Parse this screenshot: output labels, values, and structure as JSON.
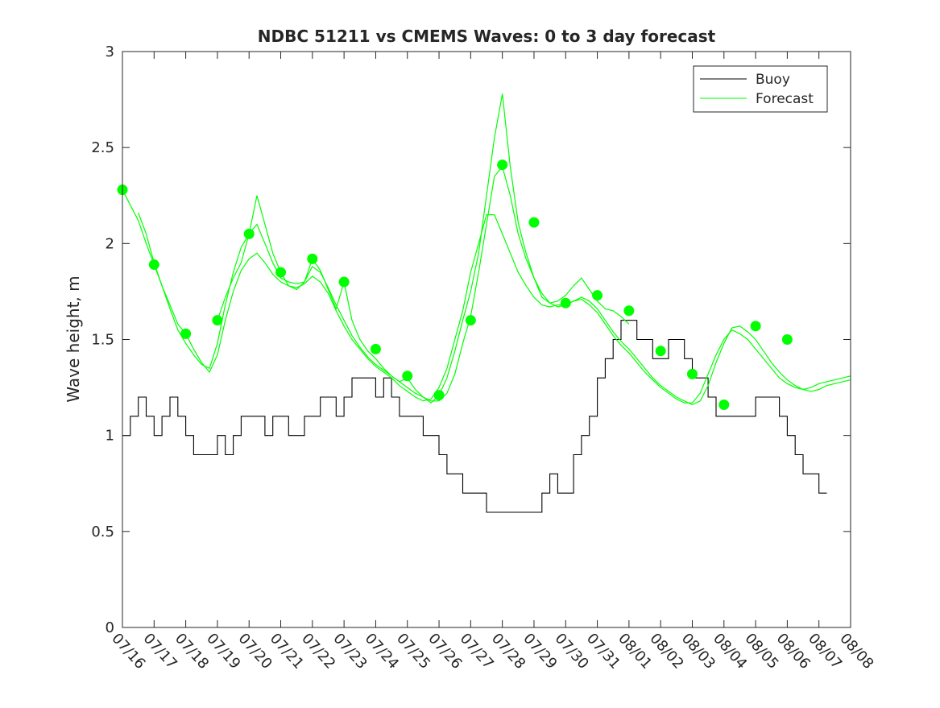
{
  "chart_data": {
    "type": "line",
    "title": "NDBC 51211 vs CMEMS Waves: 0 to 3 day forecast",
    "xlabel": "",
    "ylabel": "Wave height, m",
    "xlim": [
      "07/16",
      "08/08"
    ],
    "ylim": [
      0,
      3
    ],
    "x_ticks": [
      "07/16",
      "07/17",
      "07/18",
      "07/19",
      "07/20",
      "07/21",
      "07/22",
      "07/23",
      "07/24",
      "07/25",
      "07/26",
      "07/27",
      "07/28",
      "07/29",
      "07/30",
      "07/31",
      "08/01",
      "08/02",
      "08/03",
      "08/04",
      "08/05",
      "08/06",
      "08/07",
      "08/08"
    ],
    "y_ticks": [
      0,
      0.5,
      1,
      1.5,
      2,
      2.5,
      3
    ],
    "grid": false,
    "legend": {
      "placement": "top-right",
      "entries": [
        "Buoy",
        "Forecast"
      ]
    },
    "colors": {
      "buoy": "#000000",
      "forecast": "#00ff00"
    },
    "series": [
      {
        "name": "Buoy",
        "x": [
          "07/16",
          "07/16 06h",
          "07/16 12h",
          "07/16 18h",
          "07/17",
          "07/17 06h",
          "07/17 12h",
          "07/17 18h",
          "07/18",
          "07/18 06h",
          "07/18 12h",
          "07/18 18h",
          "07/19",
          "07/19 06h",
          "07/19 12h",
          "07/19 18h",
          "07/20",
          "07/20 06h",
          "07/20 12h",
          "07/20 18h",
          "07/21",
          "07/21 06h",
          "07/21 12h",
          "07/21 18h",
          "07/22",
          "07/22 06h",
          "07/22 12h",
          "07/22 18h",
          "07/23",
          "07/23 06h",
          "07/23 12h",
          "07/23 18h",
          "07/24",
          "07/24 06h",
          "07/24 12h",
          "07/24 18h",
          "07/25",
          "07/25 06h",
          "07/25 12h",
          "07/25 18h",
          "07/26",
          "07/26 06h",
          "07/26 12h",
          "07/26 18h",
          "07/27",
          "07/27 06h",
          "07/27 12h",
          "07/27 18h",
          "07/28",
          "07/28 06h",
          "07/28 12h",
          "07/28 18h",
          "07/29",
          "07/29 06h",
          "07/29 12h",
          "07/29 18h",
          "07/30",
          "07/30 06h",
          "07/30 12h",
          "07/30 18h",
          "07/31",
          "07/31 06h",
          "07/31 12h",
          "07/31 18h",
          "08/01",
          "08/01 06h",
          "08/01 12h",
          "08/01 18h",
          "08/02",
          "08/02 06h",
          "08/02 12h",
          "08/02 18h",
          "08/03",
          "08/03 06h",
          "08/03 12h",
          "08/03 18h",
          "08/04",
          "08/04 06h",
          "08/04 12h",
          "08/04 18h",
          "08/05",
          "08/05 06h",
          "08/05 12h",
          "08/05 18h",
          "08/06",
          "08/06 06h",
          "08/06 12h",
          "08/06 18h",
          "08/07",
          "08/07 06h"
        ],
        "y": [
          1.0,
          1.1,
          1.2,
          1.1,
          1.0,
          1.1,
          1.2,
          1.1,
          1.0,
          0.9,
          0.9,
          0.9,
          1.0,
          0.9,
          1.0,
          1.1,
          1.1,
          1.1,
          1.0,
          1.1,
          1.1,
          1.0,
          1.0,
          1.1,
          1.1,
          1.2,
          1.2,
          1.1,
          1.2,
          1.3,
          1.3,
          1.3,
          1.2,
          1.3,
          1.2,
          1.1,
          1.1,
          1.1,
          1.0,
          1.0,
          0.9,
          0.8,
          0.8,
          0.7,
          0.7,
          0.7,
          0.6,
          0.6,
          0.6,
          0.6,
          0.6,
          0.6,
          0.6,
          0.7,
          0.8,
          0.7,
          0.7,
          0.9,
          1.0,
          1.1,
          1.3,
          1.4,
          1.5,
          1.6,
          1.6,
          1.5,
          1.5,
          1.4,
          1.4,
          1.5,
          1.5,
          1.4,
          1.3,
          1.3,
          1.2,
          1.1,
          1.1,
          1.1,
          1.1,
          1.1,
          1.2,
          1.2,
          1.2,
          1.1,
          1.0,
          0.9,
          0.8,
          0.8,
          0.7,
          0.7
        ]
      },
      {
        "name": "Forecast",
        "x": [
          "07/16",
          "07/16 06h",
          "07/16 12h",
          "07/16 18h",
          "07/17",
          "07/17 06h",
          "07/17 12h",
          "07/17 18h",
          "07/18",
          "07/18 06h",
          "07/18 12h",
          "07/18 18h",
          "07/19",
          "07/19 06h",
          "07/19 12h",
          "07/19 18h",
          "07/20",
          "07/20 06h",
          "07/20 12h",
          "07/20 18h",
          "07/21",
          "07/21 06h",
          "07/21 12h",
          "07/21 18h",
          "07/22",
          "07/22 06h",
          "07/22 12h",
          "07/22 18h",
          "07/23",
          "07/23 06h",
          "07/23 12h",
          "07/23 18h",
          "07/24",
          "07/24 06h",
          "07/24 12h",
          "07/24 18h",
          "07/25",
          "07/25 06h",
          "07/25 12h",
          "07/25 18h",
          "07/26",
          "07/26 06h",
          "07/26 12h",
          "07/26 18h",
          "07/27",
          "07/27 06h",
          "07/27 12h",
          "07/27 18h",
          "07/28",
          "07/28 06h",
          "07/28 12h",
          "07/28 18h",
          "07/29",
          "07/29 06h",
          "07/29 12h",
          "07/29 18h",
          "07/30",
          "07/30 06h",
          "07/30 12h",
          "07/30 18h",
          "07/31",
          "07/31 06h",
          "07/31 12h",
          "07/31 18h",
          "08/01",
          "08/01 06h",
          "08/01 12h",
          "08/01 18h",
          "08/02",
          "08/02 06h",
          "08/02 12h",
          "08/02 18h",
          "08/03",
          "08/03 06h",
          "08/03 12h",
          "08/03 18h",
          "08/04",
          "08/04 06h",
          "08/04 12h",
          "08/04 18h",
          "08/05",
          "08/05 06h",
          "08/05 12h",
          "08/05 18h",
          "08/06",
          "08/06 06h",
          "08/06 12h",
          "08/06 18h",
          "08/07",
          "08/07 06h",
          "08/07 12h",
          "08/07 18h",
          "08/08"
        ],
        "y": [
          2.28,
          2.2,
          2.12,
          2.0,
          1.89,
          1.78,
          1.68,
          1.58,
          1.53,
          1.45,
          1.38,
          1.33,
          1.42,
          1.6,
          1.75,
          1.86,
          1.92,
          1.95,
          1.9,
          1.84,
          1.8,
          1.78,
          1.77,
          1.79,
          1.83,
          1.8,
          1.74,
          1.65,
          1.57,
          1.5,
          1.45,
          1.4,
          1.36,
          1.33,
          1.3,
          1.26,
          1.23,
          1.2,
          1.18,
          1.19,
          1.25,
          1.35,
          1.5,
          1.65,
          1.85,
          2.0,
          2.15,
          2.15,
          2.05,
          1.95,
          1.85,
          1.78,
          1.72,
          1.68,
          1.67,
          1.68,
          1.68,
          1.7,
          1.71,
          1.68,
          1.64,
          1.58,
          1.52,
          1.47,
          1.43,
          1.38,
          1.33,
          1.29,
          1.25,
          1.22,
          1.19,
          1.17,
          1.17,
          1.22,
          1.32,
          1.42,
          1.5,
          1.55,
          1.53,
          1.5,
          1.45,
          1.4,
          1.35,
          1.3,
          1.27,
          1.25,
          1.24,
          1.25,
          1.27,
          1.28,
          1.29,
          1.3,
          1.31
        ]
      },
      {
        "name": "Forecast",
        "x": [
          "07/16 12h",
          "07/16 18h",
          "07/17",
          "07/17 06h",
          "07/17 12h",
          "07/17 18h",
          "07/18",
          "07/18 06h",
          "07/18 12h",
          "07/18 18h",
          "07/19",
          "07/19 06h",
          "07/19 12h",
          "07/19 18h",
          "07/20",
          "07/20 06h",
          "07/20 12h",
          "07/20 18h",
          "07/21",
          "07/21 06h",
          "07/21 12h",
          "07/21 18h",
          "07/22",
          "07/22 06h",
          "07/22 12h",
          "07/22 18h",
          "07/23",
          "07/23 06h",
          "07/23 12h",
          "07/23 18h",
          "07/24",
          "07/24 06h",
          "07/24 12h",
          "07/24 18h",
          "07/25",
          "07/25 06h",
          "07/25 12h",
          "07/25 18h",
          "07/26",
          "07/26 06h",
          "07/26 12h",
          "07/26 18h",
          "07/27",
          "07/27 06h",
          "07/27 12h",
          "07/27 18h",
          "07/28",
          "07/28 06h",
          "07/28 12h",
          "07/28 18h",
          "07/29",
          "07/29 06h",
          "07/29 12h",
          "07/29 18h",
          "07/30",
          "07/30 06h",
          "07/30 12h",
          "07/30 18h",
          "07/31",
          "07/31 06h",
          "07/31 12h",
          "07/31 18h",
          "08/01",
          "08/01 06h",
          "08/01 12h",
          "08/01 18h",
          "08/02",
          "08/02 06h",
          "08/02 12h",
          "08/02 18h",
          "08/03",
          "08/03 06h",
          "08/03 12h",
          "08/03 18h",
          "08/04",
          "08/04 06h",
          "08/04 12h",
          "08/04 18h",
          "08/05",
          "08/05 06h",
          "08/05 12h",
          "08/05 18h",
          "08/06",
          "08/06 06h",
          "08/06 12h",
          "08/06 18h",
          "08/07",
          "08/07 06h",
          "08/07 12h",
          "08/07 18h",
          "08/08"
        ],
        "y": [
          2.16,
          2.05,
          1.9,
          1.78,
          1.66,
          1.55,
          1.48,
          1.42,
          1.37,
          1.35,
          1.48,
          1.68,
          1.85,
          1.98,
          2.05,
          2.1,
          2.0,
          1.9,
          1.82,
          1.8,
          1.79,
          1.8,
          1.88,
          1.85,
          1.77,
          1.68,
          1.6,
          1.52,
          1.46,
          1.41,
          1.37,
          1.34,
          1.31,
          1.28,
          1.25,
          1.22,
          1.2,
          1.18,
          1.18,
          1.22,
          1.32,
          1.48,
          1.62,
          1.85,
          2.1,
          2.35,
          2.4,
          2.25,
          2.05,
          1.92,
          1.82,
          1.74,
          1.69,
          1.67,
          1.68,
          1.7,
          1.72,
          1.7,
          1.66,
          1.6,
          1.54,
          1.49,
          1.45,
          1.4,
          1.35,
          1.3,
          1.26,
          1.23,
          1.2,
          1.18,
          1.16,
          1.18,
          1.26,
          1.38,
          1.48,
          1.56,
          1.57,
          1.54,
          1.5,
          1.44,
          1.38,
          1.33,
          1.29,
          1.26,
          1.24,
          1.23,
          1.24,
          1.26,
          1.27,
          1.28,
          1.29
        ]
      },
      {
        "name": "Forecast",
        "x": [
          "07/19",
          "07/19 06h",
          "07/19 12h",
          "07/19 18h",
          "07/20",
          "07/20 06h",
          "07/20 12h",
          "07/20 18h",
          "07/21",
          "07/21 06h",
          "07/21 12h",
          "07/21 18h",
          "07/22",
          "07/22 06h",
          "07/22 12h",
          "07/22 18h",
          "07/23",
          "07/23 06h",
          "07/23 12h",
          "07/23 18h",
          "07/24",
          "07/24 06h",
          "07/24 12h",
          "07/24 18h",
          "07/25",
          "07/25 06h",
          "07/25 12h",
          "07/25 18h",
          "07/26",
          "07/26 06h",
          "07/26 12h",
          "07/26 18h",
          "07/27",
          "07/27 06h",
          "07/27 12h",
          "07/27 18h",
          "07/28",
          "07/28 06h",
          "07/28 12h",
          "07/28 18h",
          "07/29",
          "07/29 06h",
          "07/29 12h",
          "07/29 18h",
          "07/30",
          "07/30 06h",
          "07/30 12h",
          "07/30 18h",
          "07/31",
          "07/31 06h",
          "07/31 12h",
          "07/31 18h",
          "08/01"
        ],
        "y": [
          1.6,
          1.72,
          1.82,
          1.9,
          2.05,
          2.25,
          2.1,
          1.95,
          1.85,
          1.78,
          1.76,
          1.8,
          1.92,
          1.86,
          1.76,
          1.66,
          1.8,
          1.6,
          1.5,
          1.44,
          1.4,
          1.35,
          1.31,
          1.28,
          1.3,
          1.24,
          1.2,
          1.17,
          1.21,
          1.3,
          1.44,
          1.6,
          1.75,
          1.95,
          2.25,
          2.55,
          2.78,
          2.4,
          2.11,
          1.95,
          1.82,
          1.72,
          1.69,
          1.7,
          1.73,
          1.78,
          1.82,
          1.76,
          1.7,
          1.66,
          1.65,
          1.62,
          1.58
        ]
      }
    ],
    "markers": {
      "series": "Forecast",
      "x": [
        "07/16",
        "07/17",
        "07/18",
        "07/19",
        "07/20",
        "07/21",
        "07/22",
        "07/23",
        "07/24",
        "07/25",
        "07/26",
        "07/27",
        "07/28",
        "07/29",
        "07/30",
        "07/31",
        "08/01",
        "08/02",
        "08/03",
        "08/04",
        "08/05",
        "08/06"
      ],
      "y": [
        2.28,
        1.89,
        1.53,
        1.6,
        2.05,
        1.85,
        1.92,
        1.8,
        1.45,
        1.31,
        1.21,
        1.6,
        2.41,
        2.11,
        1.69,
        1.73,
        1.65,
        1.44,
        1.32,
        1.16,
        1.57,
        1.5
      ]
    }
  }
}
